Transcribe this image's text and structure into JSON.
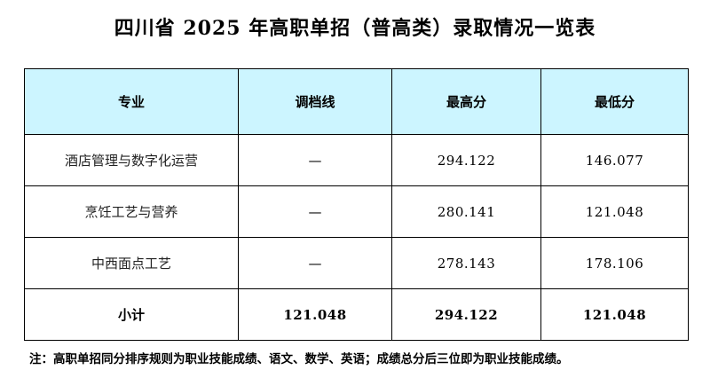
{
  "title": "四川省 2025 年高职单招（普高类）录取情况一览表",
  "table": {
    "headers": [
      "专业",
      "调档线",
      "最高分",
      "最低分"
    ],
    "rows": [
      [
        "酒店管理与数字化运营",
        "—",
        "294.122",
        "146.077"
      ],
      [
        "烹饪工艺与营养",
        "—",
        "280.141",
        "121.048"
      ],
      [
        "中西面点工艺",
        "—",
        "278.143",
        "178.106"
      ]
    ],
    "subtotal": [
      "小计",
      "121.048",
      "294.122",
      "121.048"
    ]
  },
  "note": "注：高职单招同分排序规则为职业技能成绩、语文、数学、英语；成绩总分后三位即为职业技能成绩。"
}
